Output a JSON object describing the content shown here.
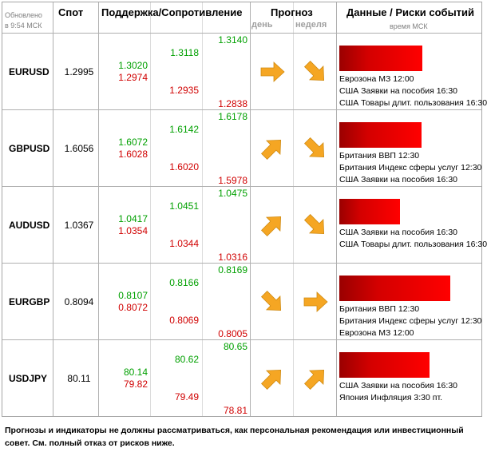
{
  "header": {
    "updated_line1": "Обновлено",
    "updated_line2": "в 9:54 МСК",
    "spot": "Спот",
    "support_resistance": "Поддержка/Сопротивление",
    "forecast": "Прогноз",
    "forecast_day": "день",
    "forecast_week": "неделя",
    "events": "Данные / Риски событий",
    "events_time": "время МСК"
  },
  "colors": {
    "support": "#00a000",
    "resistance": "#d00000",
    "arrow": "#f5a623",
    "bar": "#ff0000"
  },
  "rows": [
    {
      "pair": "EURUSD",
      "spot": "1.2995",
      "levels": {
        "r1": "1.3020",
        "s1": "1.2974",
        "r2": "1.3118",
        "s2": "1.2935",
        "r3": "1.3140",
        "s3": "1.2838"
      },
      "day_icon": "arrow-right-icon",
      "week_icon": "arrow-down-right-icon",
      "risk_level": 0.58,
      "events": [
        "Еврозона МЗ 12:00",
        "США Заявки на пособия 16:30",
        "США Товары длит. пользования 16:30"
      ]
    },
    {
      "pair": "GBPUSD",
      "spot": "1.6056",
      "levels": {
        "r1": "1.6072",
        "s1": "1.6028",
        "r2": "1.6142",
        "s2": "1.6020",
        "r3": "1.6178",
        "s3": "1.5978"
      },
      "day_icon": "arrow-up-right-icon",
      "week_icon": "arrow-down-right-icon",
      "risk_level": 0.57,
      "events": [
        "Британия ВВП 12:30",
        "Британия Индекс сферы услуг 12:30",
        "США Заявки на пособия 16:30"
      ]
    },
    {
      "pair": "AUDUSD",
      "spot": "1.0367",
      "levels": {
        "r1": "1.0417",
        "s1": "1.0354",
        "r2": "1.0451",
        "s2": "1.0344",
        "r3": "1.0475",
        "s3": "1.0316"
      },
      "day_icon": "arrow-up-right-icon",
      "week_icon": "arrow-down-right-icon",
      "risk_level": 0.42,
      "events": [
        "США Заявки на пособия 16:30",
        "США Товары длит. пользования 16:30"
      ]
    },
    {
      "pair": "EURGBP",
      "spot": "0.8094",
      "levels": {
        "r1": "0.8107",
        "s1": "0.8072",
        "r2": "0.8166",
        "s2": "0.8069",
        "r3": "0.8169",
        "s3": "0.8005"
      },
      "day_icon": "arrow-down-right-icon",
      "week_icon": "arrow-right-icon",
      "risk_level": 0.77,
      "events": [
        "Британия ВВП 12:30",
        "Британия Индекс сферы услуг 12:30",
        "Еврозона МЗ 12:00"
      ]
    },
    {
      "pair": "USDJPY",
      "spot": "80.11",
      "levels": {
        "r1": "80.14",
        "s1": "79.82",
        "r2": "80.62",
        "s2": "79.49",
        "r3": "80.65",
        "s3": "78.81"
      },
      "day_icon": "arrow-up-right-icon",
      "week_icon": "arrow-up-right-icon",
      "risk_level": 0.63,
      "events": [
        "США Заявки на пособия 16:30",
        "Япония Инфляция 3:30 пт."
      ]
    }
  ],
  "disclaimer": "Прогнозы и индикаторы не должны рассматриваться, как персональная рекомендация или инвестиционный совет. См. полный отказ от рисков ниже."
}
